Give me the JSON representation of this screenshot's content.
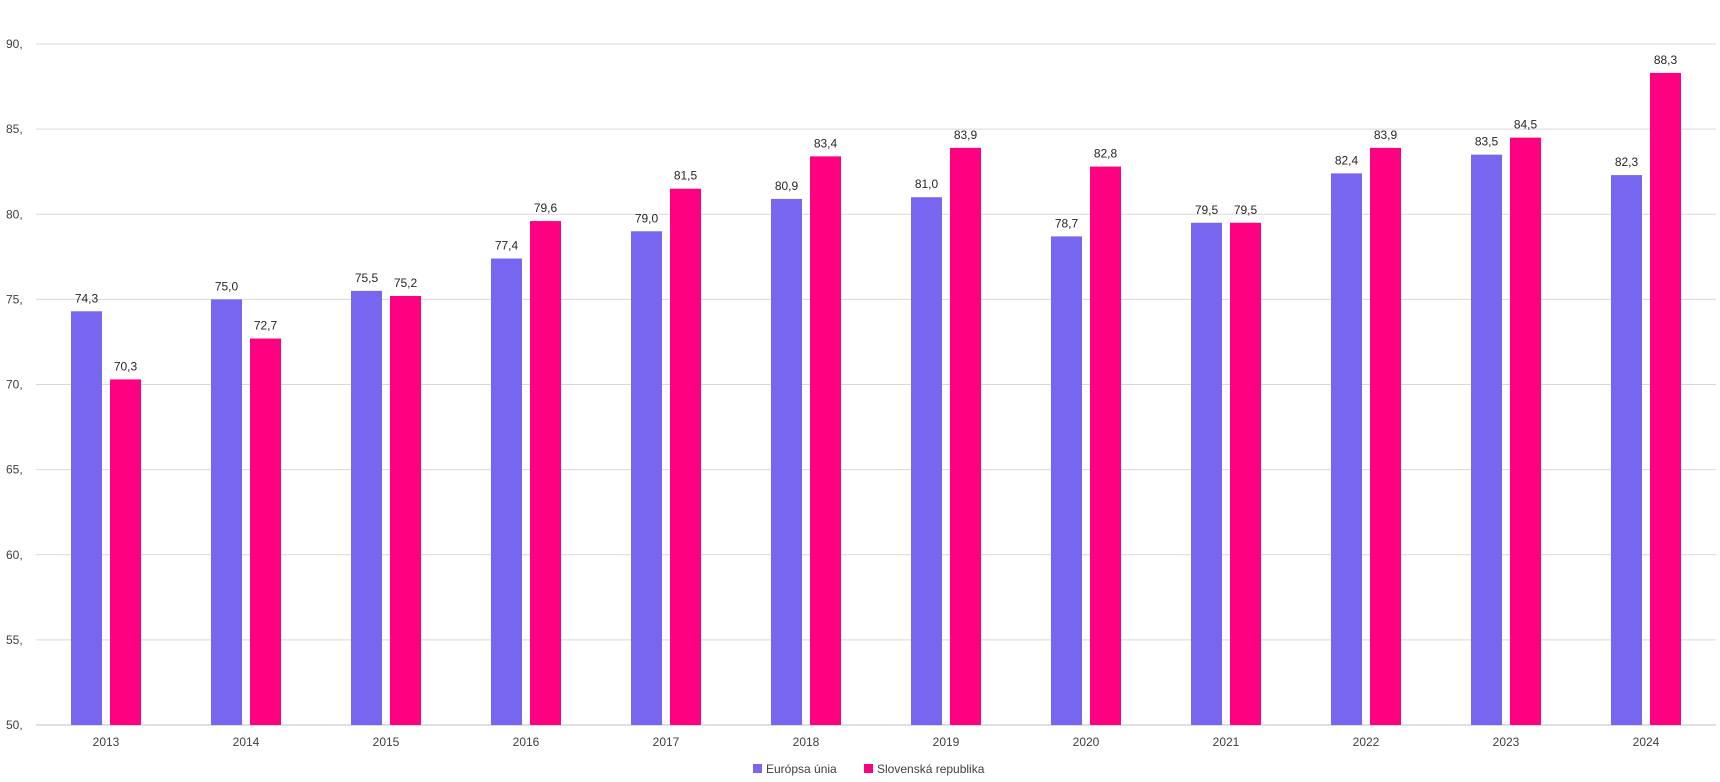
{
  "chart_data": {
    "type": "bar",
    "title": "",
    "xlabel": "",
    "ylabel": "",
    "ylim": [
      50,
      90
    ],
    "y_ticks": [
      50,
      55,
      60,
      65,
      70,
      75,
      80,
      85,
      90
    ],
    "y_tick_labels": [
      "50,",
      "55,",
      "60,",
      "65,",
      "70,",
      "75,",
      "80,",
      "85,",
      "90,"
    ],
    "grid": true,
    "legend_position": "bottom",
    "categories": [
      "2013",
      "2014",
      "2015",
      "2016",
      "2017",
      "2018",
      "2019",
      "2020",
      "2021",
      "2022",
      "2023",
      "2024"
    ],
    "series": [
      {
        "name": "Európsa únia",
        "color": "#7766F0",
        "values": [
          74.3,
          75.0,
          75.5,
          77.4,
          79.0,
          80.9,
          81.0,
          78.7,
          79.5,
          82.4,
          83.5,
          82.3
        ],
        "labels": [
          "74,3",
          "75,0",
          "75,5",
          "77,4",
          "79,0",
          "80,9",
          "81,0",
          "78,7",
          "79,5",
          "82,4",
          "83,5",
          "82,3"
        ]
      },
      {
        "name": "Slovenská republika",
        "color": "#FF0080",
        "values": [
          70.3,
          72.7,
          75.2,
          79.6,
          81.5,
          83.4,
          83.9,
          82.8,
          79.5,
          83.9,
          84.5,
          88.3
        ],
        "labels": [
          "70,3",
          "72,7",
          "75,2",
          "79,6",
          "81,5",
          "83,4",
          "83,9",
          "82,8",
          "79,5",
          "83,9",
          "84,5",
          "88,3"
        ]
      }
    ]
  }
}
